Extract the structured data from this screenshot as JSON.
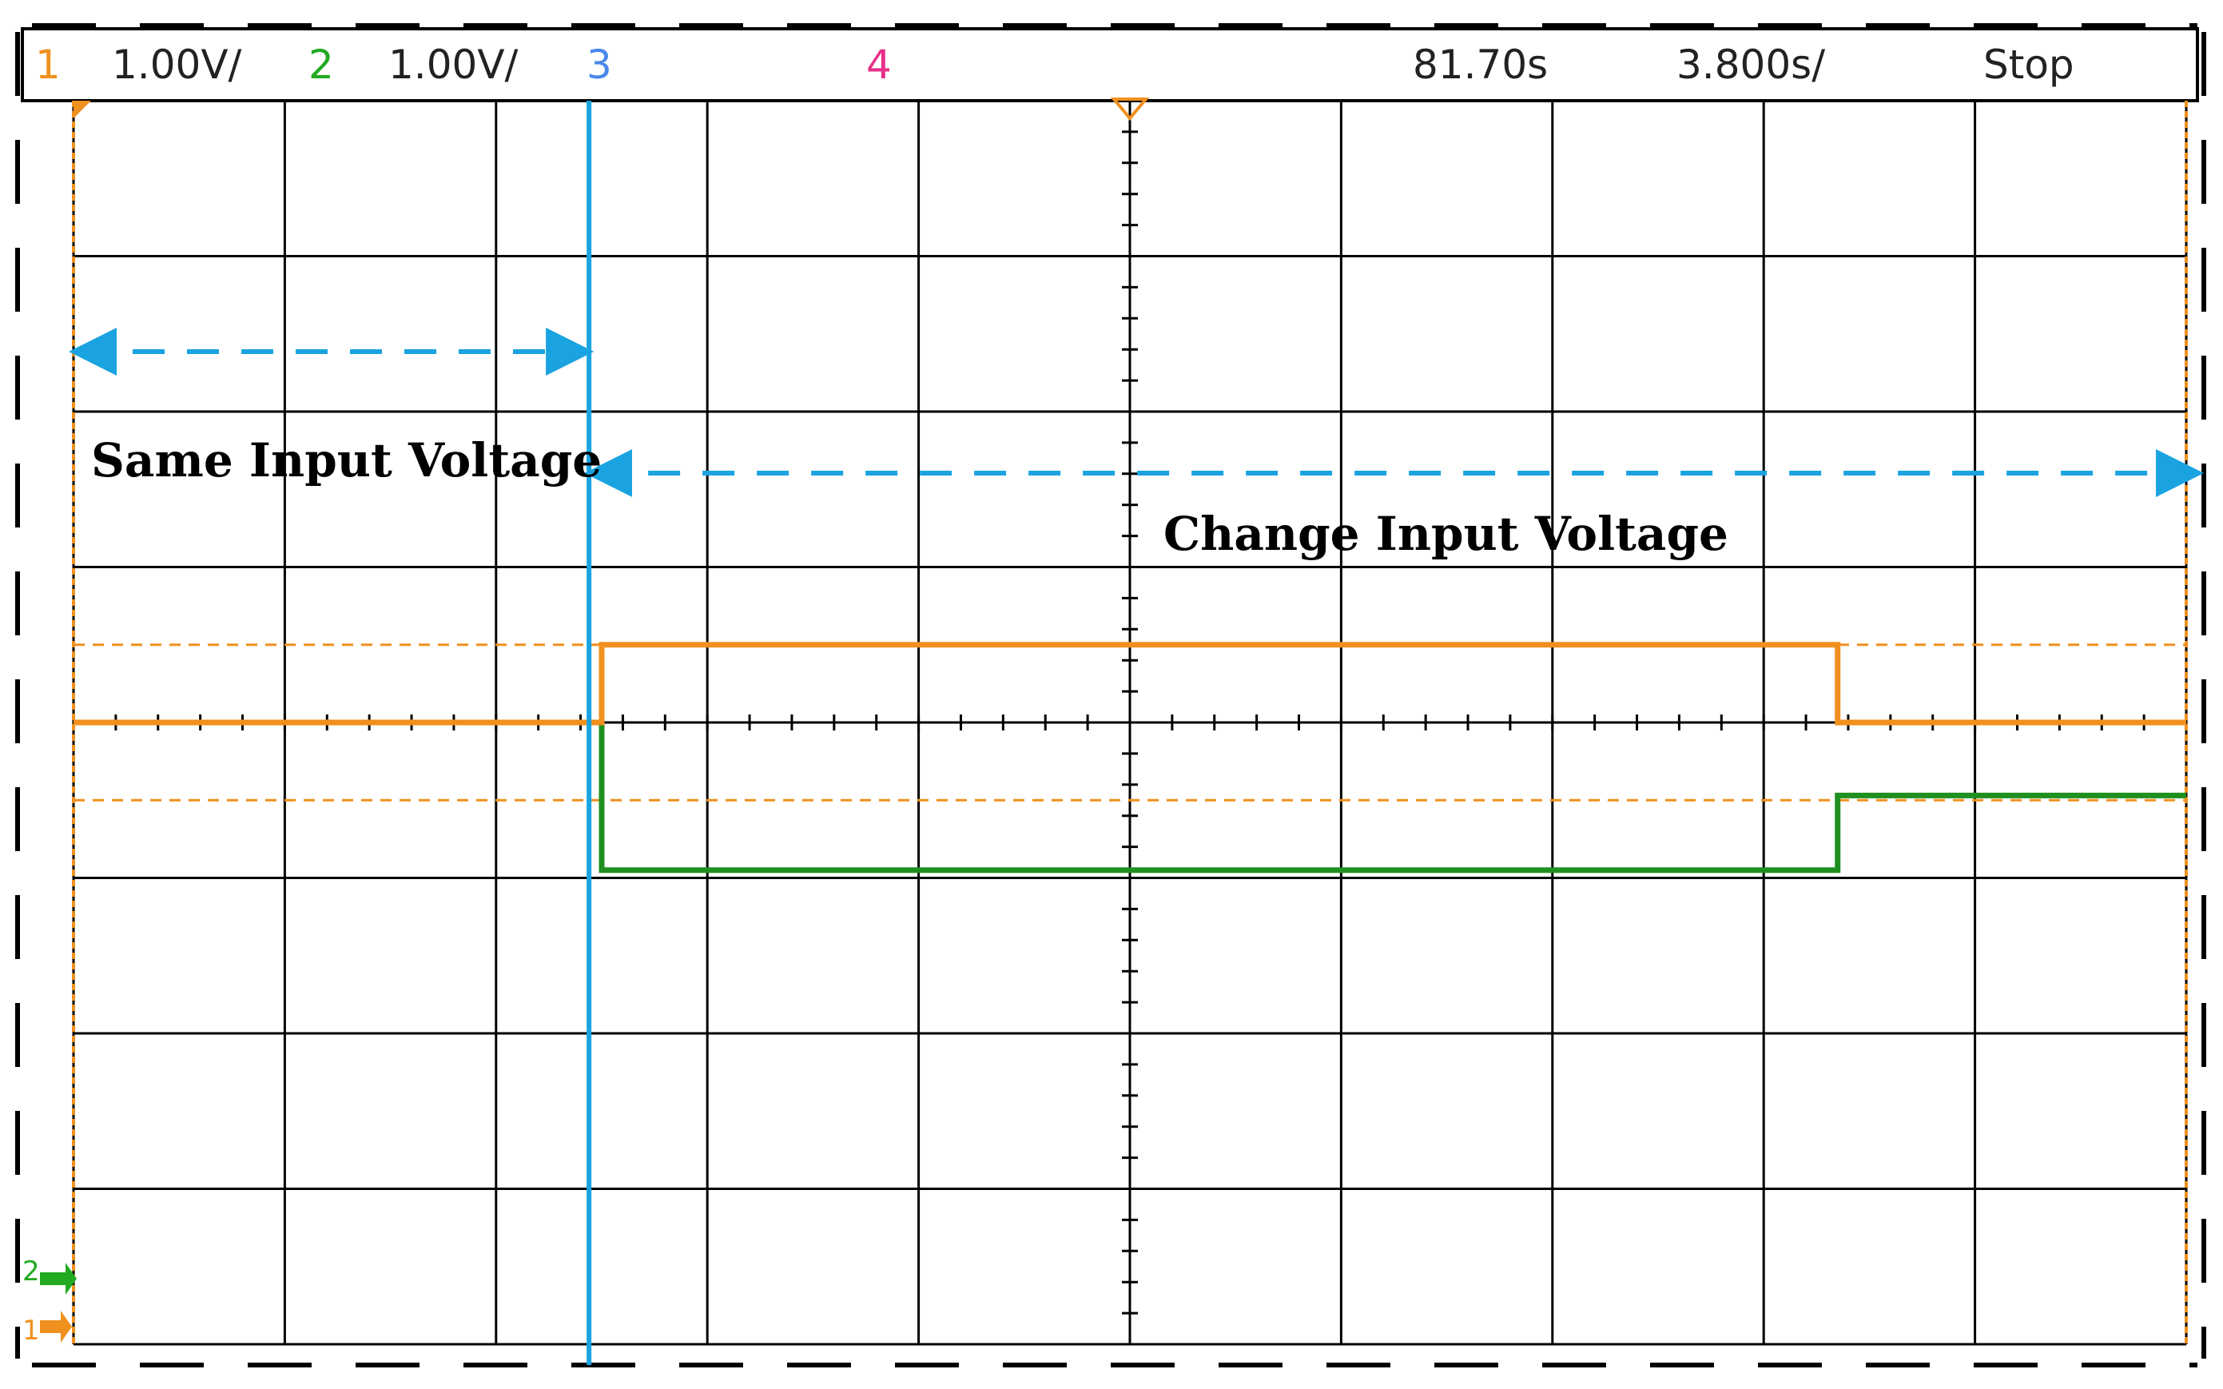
{
  "header": {
    "ch1_label": "1",
    "ch1_scale": "1.00V/",
    "ch2_label": "2",
    "ch2_scale": "1.00V/",
    "ch3_label": "3",
    "ch4_label": "4",
    "time_position": "81.70s",
    "time_scale": "3.800s/",
    "run_state": "Stop"
  },
  "colors": {
    "ch1": "#f0901e",
    "ch2": "#1f8f1f",
    "ch2_label": "#22aa22",
    "ch3": "#4a88e8",
    "ch4": "#e8308a",
    "cursor": "#1aa3e0",
    "grid": "#000000",
    "ref_line": "#f0901e"
  },
  "icons": {
    "trigger_marker": "trigger-triangle-icon",
    "ch1_ground": "ch1-ground-marker-icon",
    "ch2_ground": "ch2-ground-marker-icon"
  },
  "annotations": {
    "same": "Same Input Voltage",
    "change": "Change Input Voltage"
  },
  "markers": {
    "ch1": "1",
    "ch2": "2"
  },
  "chart_data": {
    "type": "line",
    "title": "",
    "xlabel": "",
    "ylabel": "",
    "x_unit": "divisions",
    "y_unit": "divisions",
    "xlim": [
      0,
      10
    ],
    "ylim": [
      -4,
      4
    ],
    "grid": true,
    "cursor_x": 2.44,
    "reference_lines_y": [
      0.5,
      -0.5
    ],
    "series": [
      {
        "name": "1",
        "color_key": "ch1",
        "x": [
          0,
          2.5,
          2.5,
          8.35,
          8.35,
          10
        ],
        "y": [
          0.0,
          0.0,
          0.5,
          0.5,
          0.0,
          0.0
        ]
      },
      {
        "name": "2",
        "color_key": "ch2",
        "x": [
          0,
          2.5,
          2.5,
          8.35,
          8.35,
          10
        ],
        "y": [
          0.0,
          0.0,
          -0.95,
          -0.95,
          -0.47,
          -0.47
        ]
      }
    ],
    "regions": [
      {
        "label_key": "same",
        "x_from": 0,
        "x_to": 2.44
      },
      {
        "label_key": "change",
        "x_from": 2.44,
        "x_to": 10
      }
    ]
  }
}
